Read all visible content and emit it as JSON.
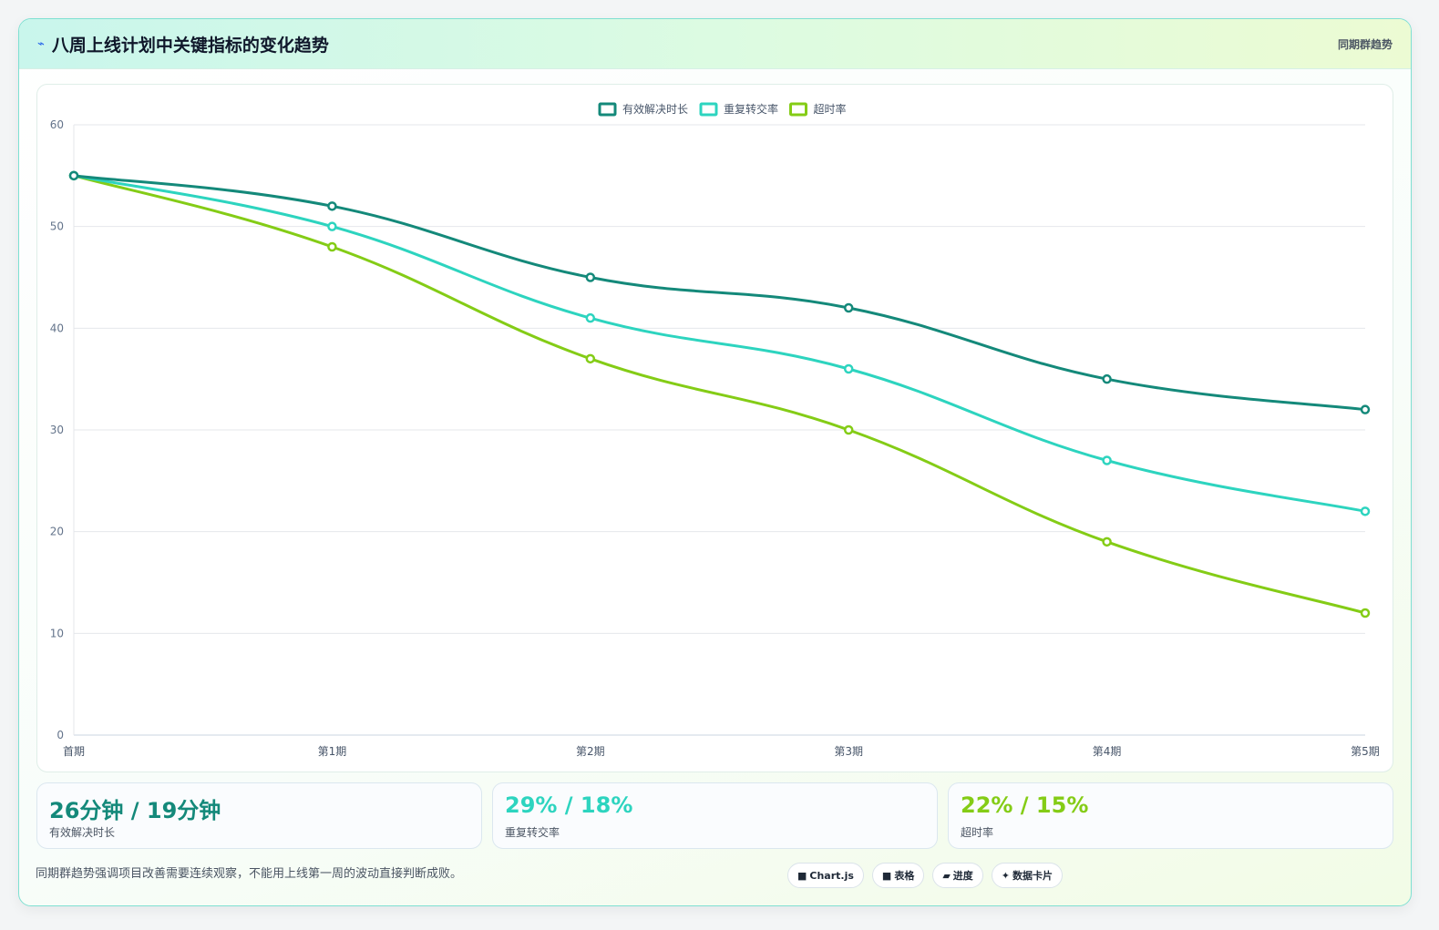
{
  "header": {
    "title_icon": "chart-icon",
    "title": "八周上线计划中关键指标的变化趋势",
    "right_label": "同期群趋势"
  },
  "chart_data": {
    "type": "line",
    "categories": [
      "首期",
      "第1期",
      "第2期",
      "第3期",
      "第4期",
      "第5期"
    ],
    "series": [
      {
        "name": "有效解决时长",
        "color": "#14897a",
        "values": [
          55,
          52,
          45,
          42,
          35,
          32
        ]
      },
      {
        "name": "重复转交率",
        "color": "#2dd4bf",
        "values": [
          55,
          50,
          41,
          36,
          27,
          22
        ]
      },
      {
        "name": "超时率",
        "color": "#84cc16",
        "values": [
          55,
          48,
          37,
          30,
          19,
          12
        ]
      }
    ],
    "ylim": [
      0,
      60
    ],
    "yticks": [
      0,
      10,
      20,
      30,
      40,
      50,
      60
    ],
    "grid": true,
    "legend": "top-center"
  },
  "stats": [
    {
      "value": "26分钟 / 19分钟",
      "label": "有效解决时长",
      "color": "#14897a"
    },
    {
      "value": "29% / 18%",
      "label": "重复转交率",
      "color": "#2dd4bf"
    },
    {
      "value": "22% / 15%",
      "label": "超时率",
      "color": "#84cc16"
    }
  ],
  "footer": {
    "note": "同期群趋势强调项目改善需要连续观察，不能用上线第一周的波动直接判断成败。",
    "chips": [
      {
        "icon": "■",
        "label": "Chart.js"
      },
      {
        "icon": "■",
        "label": "表格"
      },
      {
        "icon": "▰",
        "label": "进度"
      },
      {
        "icon": "✦",
        "label": "数据卡片"
      }
    ]
  }
}
